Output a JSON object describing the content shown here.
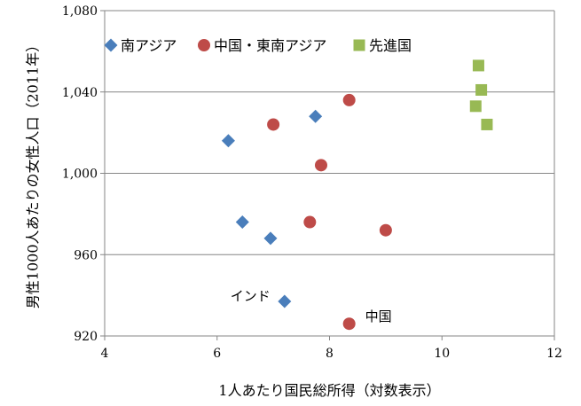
{
  "chart_data": {
    "type": "scatter",
    "title": "",
    "xlabel": "1人あたり国民総所得（対数表示）",
    "ylabel": "男性1000人あたりの女性人口（2011年）",
    "xlim": [
      4,
      12
    ],
    "ylim": [
      920,
      1080
    ],
    "xticks": [
      4,
      6,
      8,
      10,
      12
    ],
    "yticks": [
      920,
      960,
      1000,
      1040,
      1080
    ],
    "xtick_labels": [
      "4",
      "6",
      "8",
      "10",
      "12"
    ],
    "ytick_labels": [
      "920",
      "960",
      "1,000",
      "1,040",
      "1,080"
    ],
    "grid": "horizontal",
    "legend_position": "top",
    "series": [
      {
        "name": "南アジア",
        "marker": "diamond",
        "color": "#4a7ebb",
        "points": [
          {
            "x": 6.2,
            "y": 1016
          },
          {
            "x": 7.75,
            "y": 1028
          },
          {
            "x": 6.45,
            "y": 976
          },
          {
            "x": 6.95,
            "y": 968
          },
          {
            "x": 7.2,
            "y": 937,
            "label": "インド"
          }
        ]
      },
      {
        "name": "中国・東南アジア",
        "marker": "circle",
        "color": "#be4b48",
        "points": [
          {
            "x": 7.0,
            "y": 1024
          },
          {
            "x": 8.35,
            "y": 1036
          },
          {
            "x": 7.85,
            "y": 1004
          },
          {
            "x": 7.65,
            "y": 976
          },
          {
            "x": 9.0,
            "y": 972
          },
          {
            "x": 8.35,
            "y": 926,
            "label": "中国"
          }
        ]
      },
      {
        "name": "先進国",
        "marker": "square",
        "color": "#98b954",
        "points": [
          {
            "x": 10.65,
            "y": 1053
          },
          {
            "x": 10.7,
            "y": 1041
          },
          {
            "x": 10.6,
            "y": 1033
          },
          {
            "x": 10.8,
            "y": 1024
          }
        ]
      }
    ]
  }
}
